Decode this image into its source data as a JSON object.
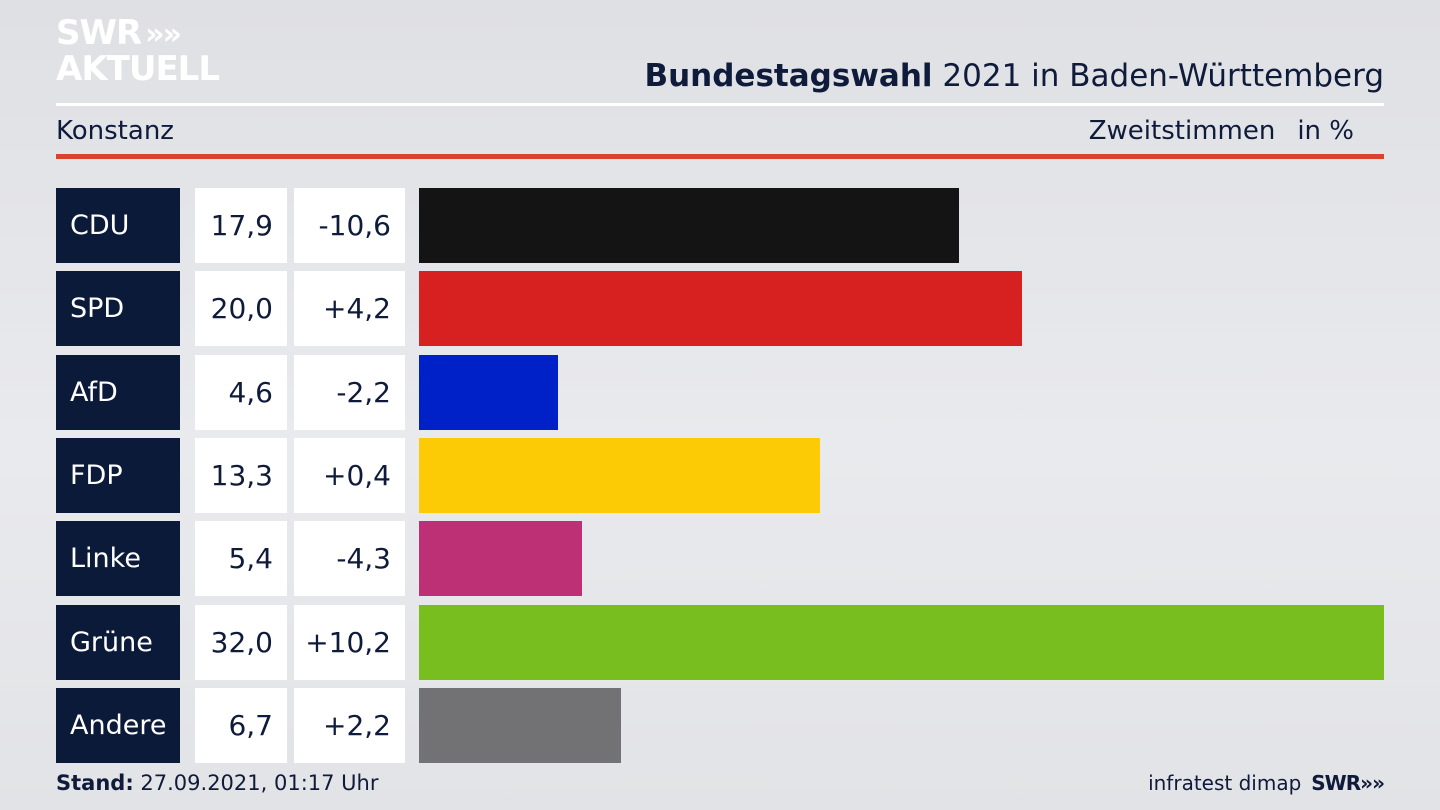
{
  "logo": {
    "line1": "SWR",
    "arrows": "»",
    "line2": "AKTUELL"
  },
  "header": {
    "title_bold": "Bundestagswahl",
    "title_rest": " 2021 in Baden-Württemberg"
  },
  "subheader": {
    "region": "Konstanz",
    "measure": "Zweitstimmen",
    "unit": "in %"
  },
  "footer": {
    "stand_label": "Stand:",
    "stand_value": " 27.09.2021, 01:17 Uhr",
    "source": "infratest dimap",
    "brand": "SWR",
    "brand_arrows": "»"
  },
  "colors": {
    "CDU": "#141414",
    "SPD": "#d72020",
    "AfD": "#0020c8",
    "FDP": "#fdcb05",
    "Linke": "#be3075",
    "Grüne": "#78be1e",
    "Andere": "#727274",
    "accent_red": "#d9412f",
    "label_bg": "#0c1a3a"
  },
  "chart_data": {
    "type": "bar",
    "orientation": "horizontal",
    "categories": [
      "CDU",
      "SPD",
      "AfD",
      "FDP",
      "Linke",
      "Grüne",
      "Andere"
    ],
    "values": [
      17.9,
      20.0,
      4.6,
      13.3,
      5.4,
      32.0,
      6.7
    ],
    "value_labels": [
      "17,9",
      "20,0",
      "4,6",
      "13,3",
      "5,4",
      "32,0",
      "6,7"
    ],
    "changes": [
      -10.6,
      4.2,
      -2.2,
      0.4,
      -4.3,
      10.2,
      2.2
    ],
    "change_labels": [
      "-10,6",
      "+4,2",
      "-2,2",
      "+0,4",
      "-4,3",
      "+10,2",
      "+2,2"
    ],
    "xlim": [
      0,
      32.0
    ],
    "grid": false,
    "legend": "none"
  }
}
